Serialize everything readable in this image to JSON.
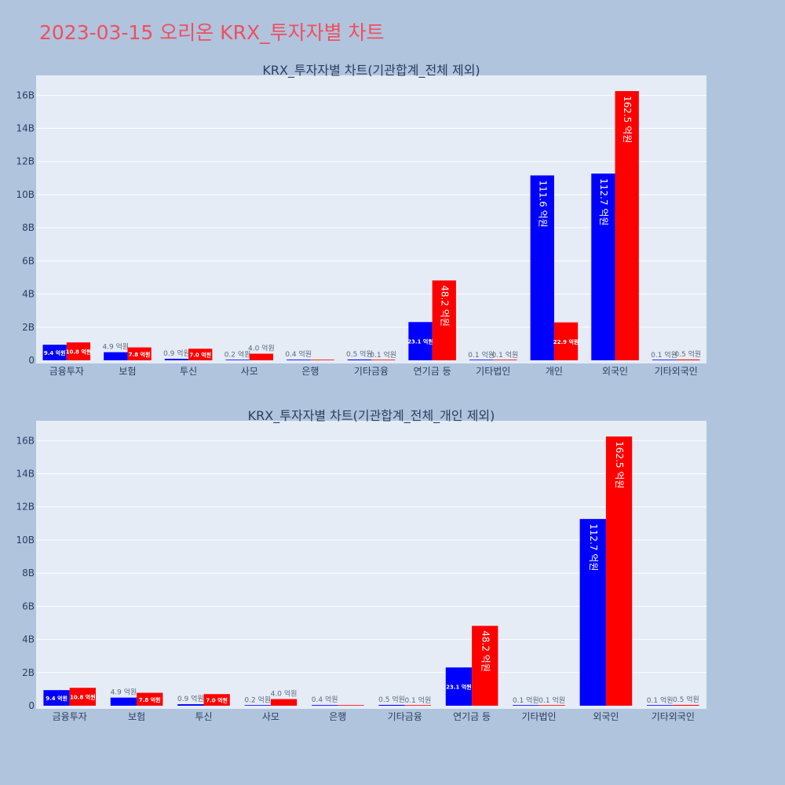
{
  "page_title": "2023-03-15 오리온 KRX_투자자별 차트",
  "colors": {
    "background": "#b0c4de",
    "plot_bg": "#e5ecf6",
    "title": "#ef4f5f",
    "buy": "#0000ff",
    "sell": "#ff0000",
    "text": "#2a3f5f"
  },
  "chart_data": [
    {
      "type": "bar",
      "title": "KRX_투자자별 차트(기관합계_전체 제외)",
      "categories": [
        "금융투자",
        "보험",
        "투신",
        "사모",
        "은행",
        "기타금융",
        "연기금 등",
        "기타법인",
        "개인",
        "외국인",
        "기타외국인"
      ],
      "series": [
        {
          "color": "#0000ff",
          "values": [
            940000000,
            490000000,
            90000000,
            20000000,
            40000000,
            50000000,
            2310000000,
            10000000,
            11160000000,
            11270000000,
            10000000
          ],
          "labels": [
            "9.4 억원",
            "4.9 억원",
            "0.9 억원",
            "0.2 억원",
            "0.4 억원",
            "0.5 억원",
            "23.1 억원",
            "0.1 억원",
            "111.6 억원",
            "112.7 억원",
            "0.1 억원"
          ]
        },
        {
          "color": "#ff0000",
          "values": [
            1080000000,
            780000000,
            700000000,
            400000000,
            0,
            10000000,
            4820000000,
            10000000,
            2290000000,
            16250000000,
            50000000
          ],
          "labels": [
            "10.8 억원",
            "7.8 억원",
            "7.0 억원",
            "4.0 억원",
            "",
            "0.1 억원",
            "48.2 억원",
            "0.1 억원",
            "22.9 억원",
            "162.5 억원",
            "0.5 억원"
          ]
        }
      ],
      "ylim": [
        0,
        17200000000
      ],
      "yticks": [
        0,
        2000000000,
        4000000000,
        6000000000,
        8000000000,
        10000000000,
        12000000000,
        14000000000,
        16000000000
      ],
      "ytick_labels": [
        "0",
        "2B",
        "4B",
        "6B",
        "8B",
        "10B",
        "12B",
        "14B",
        "16B"
      ],
      "grid": true
    },
    {
      "type": "bar",
      "title": "KRX_투자자별 차트(기관합계_전체_개인 제외)",
      "categories": [
        "금융투자",
        "보험",
        "투신",
        "사모",
        "은행",
        "기타금융",
        "연기금 등",
        "기타법인",
        "외국인",
        "기타외국인"
      ],
      "series": [
        {
          "color": "#0000ff",
          "values": [
            940000000,
            490000000,
            90000000,
            20000000,
            40000000,
            50000000,
            2310000000,
            10000000,
            11270000000,
            10000000
          ],
          "labels": [
            "9.4 억원",
            "4.9 억원",
            "0.9 억원",
            "0.2 억원",
            "0.4 억원",
            "0.5 억원",
            "23.1 억원",
            "0.1 억원",
            "112.7 억원",
            "0.1 억원"
          ]
        },
        {
          "color": "#ff0000",
          "values": [
            1080000000,
            780000000,
            700000000,
            400000000,
            0,
            10000000,
            4820000000,
            10000000,
            16250000000,
            50000000
          ],
          "labels": [
            "10.8 억원",
            "7.8 억원",
            "7.0 억원",
            "4.0 억원",
            "",
            "0.1 억원",
            "48.2 억원",
            "0.1 억원",
            "162.5 억원",
            "0.5 억원"
          ]
        }
      ],
      "ylim": [
        0,
        17200000000
      ],
      "yticks": [
        0,
        2000000000,
        4000000000,
        6000000000,
        8000000000,
        10000000000,
        12000000000,
        14000000000,
        16000000000
      ],
      "ytick_labels": [
        "0",
        "2B",
        "4B",
        "6B",
        "8B",
        "10B",
        "12B",
        "14B",
        "16B"
      ],
      "grid": true
    }
  ]
}
